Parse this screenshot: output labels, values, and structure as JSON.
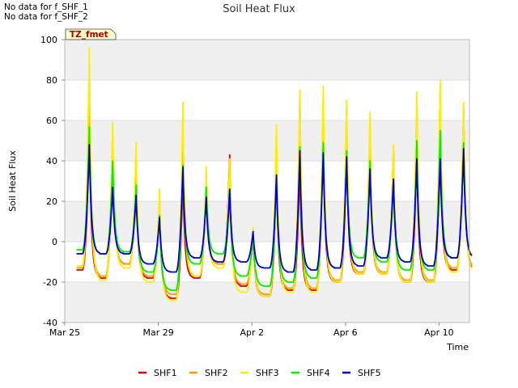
{
  "notes": [
    "No data for f_SHF_1",
    "No data for f_SHF_2"
  ],
  "chart_data": {
    "type": "line",
    "title": "Soil Heat Flux",
    "xlabel": "Time",
    "ylabel": "Soil Heat Flux",
    "badge": "TZ_fmet",
    "ylim": [
      -40,
      100
    ],
    "yticks": [
      -40,
      -20,
      0,
      20,
      40,
      60,
      80,
      100
    ],
    "xlim": [
      0,
      17.3
    ],
    "xticks": [
      {
        "label": "Mar 25",
        "day": 0
      },
      {
        "label": "Mar 29",
        "day": 4
      },
      {
        "label": "Apr 2",
        "day": 8
      },
      {
        "label": "Apr 6",
        "day": 12
      },
      {
        "label": "Apr 10",
        "day": 16
      }
    ],
    "day_offset": 0.5,
    "grid": true,
    "legend_position": "bottom",
    "series_colors": {
      "SHF1": "#dd0000",
      "SHF2": "#ff9900",
      "SHF3": "#ffee00",
      "SHF4": "#00ee00",
      "SHF5": "#0000cc"
    },
    "daily": {
      "SHF1": {
        "peak": [
          57,
          49,
          33,
          20,
          31,
          33,
          43,
          4,
          35,
          38,
          55,
          46,
          52,
          46,
          46,
          53,
          65
        ],
        "trough": [
          -14,
          -18,
          -11,
          -18,
          -28,
          -18,
          -11,
          -22,
          -27,
          -24,
          -24,
          -20,
          -16,
          -16,
          -20,
          -20,
          -14
        ]
      },
      "SHF2": {
        "peak": [
          75,
          53,
          38,
          22,
          54,
          32,
          38,
          5,
          44,
          73,
          67,
          68,
          58,
          46,
          70,
          77,
          65
        ],
        "trough": [
          -13,
          -17,
          -11,
          -17,
          -26,
          -17,
          -11,
          -21,
          -26,
          -23,
          -23,
          -19,
          -15,
          -15,
          -19,
          -19,
          -13
        ]
      },
      "SHF3": {
        "peak": [
          96,
          59,
          49,
          26,
          69,
          37,
          41,
          7,
          58,
          75,
          77,
          70,
          64,
          48,
          74,
          80,
          69
        ],
        "trough": [
          -12,
          -19,
          -13,
          -20,
          -29,
          -17,
          -13,
          -25,
          -27,
          -25,
          -25,
          -20,
          -16,
          -16,
          -20,
          -20,
          -15
        ]
      },
      "SHF4": {
        "peak": [
          57,
          40,
          28,
          13,
          38,
          27,
          26,
          4,
          33,
          47,
          49,
          45,
          40,
          30,
          50,
          55,
          49
        ],
        "trough": [
          -4,
          -6,
          -5,
          -15,
          -24,
          -11,
          -6,
          -17,
          -22,
          -20,
          -18,
          -13,
          -8,
          -10,
          -14,
          -14,
          -8
        ]
      },
      "SHF5": {
        "peak": [
          48,
          27,
          23,
          12,
          37,
          22,
          26,
          5,
          33,
          45,
          44,
          42,
          36,
          31,
          41,
          41,
          46
        ],
        "trough": [
          -6,
          -6,
          -6,
          -11,
          -15,
          -8,
          -10,
          -10,
          -13,
          -15,
          -14,
          -13,
          -12,
          -8,
          -10,
          -12,
          -8
        ]
      }
    }
  }
}
